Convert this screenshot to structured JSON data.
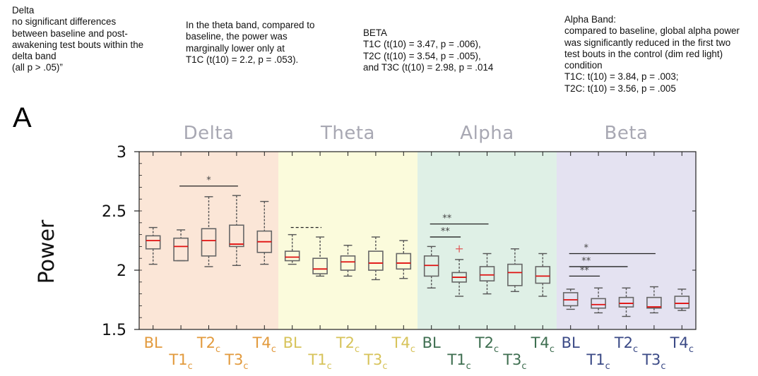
{
  "notes": [
    {
      "id": "delta",
      "lines": [
        "Delta",
        "no significant differences",
        "between baseline and post-",
        "awakening test bouts within the",
        "delta band",
        "(all p > .05)”"
      ]
    },
    {
      "id": "theta",
      "lines": [
        "In the theta band, compared to",
        "baseline, the power was",
        "marginally lower only at",
        "T1C (t(10) = 2.2, p = .053)."
      ]
    },
    {
      "id": "beta",
      "lines": [
        "BETA",
        "T1C (t(10) = 3.47, p = .006),",
        "T2C (t(10) = 3.54, p = .005),",
        "and T3C (t(10) = 2.98, p = .014"
      ]
    },
    {
      "id": "alpha",
      "lines": [
        "Alpha Band:",
        "compared to baseline, global alpha power",
        "was significantly reduced in the first two",
        "test bouts in the control (dim red light)",
        "condition",
        "T1C: t(10) = 3.84, p = .003;",
        "T2C: t(10) = 3.56, p = .005"
      ]
    }
  ],
  "chart_data": {
    "type": "boxplot",
    "panel_label": "A",
    "ylabel": "Power",
    "ylim": [
      1.5,
      3.0
    ],
    "yticks": [
      {
        "value": 1.5,
        "label": "1.5"
      },
      {
        "value": 2.0,
        "label": "2"
      },
      {
        "value": 2.5,
        "label": "2.5"
      },
      {
        "value": 3.0,
        "label": "3"
      }
    ],
    "bands": [
      {
        "name": "Delta",
        "color": "#fbe6d7",
        "tick_color": "#e29a3d",
        "boxes": [
          {
            "label": "BL",
            "sub": "",
            "q1": 2.18,
            "median": 2.25,
            "q3": 2.29,
            "wlo": 2.05,
            "whi": 2.36,
            "outliers": []
          },
          {
            "label": "T1",
            "sub": "c",
            "q1": 2.08,
            "median": 2.2,
            "q3": 2.27,
            "wlo": 2.08,
            "whi": 2.34,
            "outliers": []
          },
          {
            "label": "T2",
            "sub": "c",
            "q1": 2.12,
            "median": 2.25,
            "q3": 2.35,
            "wlo": 2.03,
            "whi": 2.62,
            "outliers": []
          },
          {
            "label": "T3",
            "sub": "c",
            "q1": 2.2,
            "median": 2.22,
            "q3": 2.38,
            "wlo": 2.04,
            "whi": 2.63,
            "outliers": []
          },
          {
            "label": "T4",
            "sub": "c",
            "q1": 2.15,
            "median": 2.24,
            "q3": 2.33,
            "wlo": 2.05,
            "whi": 2.58,
            "outliers": []
          }
        ]
      },
      {
        "name": "Theta",
        "color": "#fbfbdc",
        "tick_color": "#d7c35a",
        "boxes": [
          {
            "label": "BL",
            "sub": "",
            "q1": 2.08,
            "median": 2.11,
            "q3": 2.16,
            "wlo": 2.05,
            "whi": 2.3,
            "outliers": []
          },
          {
            "label": "T1",
            "sub": "c",
            "q1": 1.97,
            "median": 2.01,
            "q3": 2.1,
            "wlo": 1.95,
            "whi": 2.28,
            "outliers": []
          },
          {
            "label": "T2",
            "sub": "c",
            "q1": 2.0,
            "median": 2.07,
            "q3": 2.12,
            "wlo": 1.95,
            "whi": 2.21,
            "outliers": []
          },
          {
            "label": "T3",
            "sub": "c",
            "q1": 2.0,
            "median": 2.06,
            "q3": 2.16,
            "wlo": 1.92,
            "whi": 2.28,
            "outliers": []
          },
          {
            "label": "T4",
            "sub": "c",
            "q1": 2.01,
            "median": 2.06,
            "q3": 2.14,
            "wlo": 1.93,
            "whi": 2.25,
            "outliers": []
          }
        ]
      },
      {
        "name": "Alpha",
        "color": "#dff0e6",
        "tick_color": "#3e6e50",
        "boxes": [
          {
            "label": "BL",
            "sub": "",
            "q1": 1.95,
            "median": 2.04,
            "q3": 2.12,
            "wlo": 1.85,
            "whi": 2.2,
            "outliers": []
          },
          {
            "label": "T1",
            "sub": "c",
            "q1": 1.9,
            "median": 1.94,
            "q3": 1.98,
            "wlo": 1.78,
            "whi": 2.09,
            "outliers": [
              2.18
            ]
          },
          {
            "label": "T2",
            "sub": "c",
            "q1": 1.91,
            "median": 1.96,
            "q3": 2.03,
            "wlo": 1.8,
            "whi": 2.14,
            "outliers": []
          },
          {
            "label": "T3",
            "sub": "c",
            "q1": 1.87,
            "median": 1.98,
            "q3": 2.05,
            "wlo": 1.82,
            "whi": 2.18,
            "outliers": []
          },
          {
            "label": "T4",
            "sub": "c",
            "q1": 1.89,
            "median": 1.95,
            "q3": 2.03,
            "wlo": 1.78,
            "whi": 2.14,
            "outliers": []
          }
        ]
      },
      {
        "name": "Beta",
        "color": "#e4e2f1",
        "tick_color": "#3b4a86",
        "boxes": [
          {
            "label": "BL",
            "sub": "",
            "q1": 1.7,
            "median": 1.75,
            "q3": 1.81,
            "wlo": 1.67,
            "whi": 1.84,
            "outliers": []
          },
          {
            "label": "T1",
            "sub": "c",
            "q1": 1.68,
            "median": 1.71,
            "q3": 1.76,
            "wlo": 1.64,
            "whi": 1.85,
            "outliers": []
          },
          {
            "label": "T2",
            "sub": "c",
            "q1": 1.69,
            "median": 1.72,
            "q3": 1.77,
            "wlo": 1.61,
            "whi": 1.85,
            "outliers": []
          },
          {
            "label": "T3",
            "sub": "c",
            "q1": 1.68,
            "median": 1.69,
            "q3": 1.77,
            "wlo": 1.64,
            "whi": 1.86,
            "outliers": []
          },
          {
            "label": "T4",
            "sub": "c",
            "q1": 1.68,
            "median": 1.72,
            "q3": 1.78,
            "wlo": 1.66,
            "whi": 1.84,
            "outliers": []
          }
        ]
      }
    ],
    "significance": [
      {
        "band": 0,
        "from": 1,
        "to": 3,
        "y": 2.71,
        "label": "*",
        "style": "solid"
      },
      {
        "band": 1,
        "from": 0,
        "to": 1,
        "y": 2.36,
        "label": "",
        "style": "dashed"
      },
      {
        "band": 2,
        "from": 0,
        "to": 1,
        "y": 2.28,
        "label": "**",
        "style": "solid"
      },
      {
        "band": 2,
        "from": 0,
        "to": 2,
        "y": 2.39,
        "label": "**",
        "style": "solid"
      },
      {
        "band": 3,
        "from": 0,
        "to": 1,
        "y": 1.95,
        "label": "**",
        "style": "solid"
      },
      {
        "band": 3,
        "from": 0,
        "to": 2,
        "y": 2.03,
        "label": "**",
        "style": "solid"
      },
      {
        "band": 3,
        "from": 0,
        "to": 3,
        "y": 2.14,
        "label": "*",
        "style": "solid"
      }
    ],
    "colors": {
      "box": "#666666",
      "median": "#e01010",
      "whisker": "#555555",
      "outlier": "#e05050",
      "axis": "#222222"
    }
  }
}
